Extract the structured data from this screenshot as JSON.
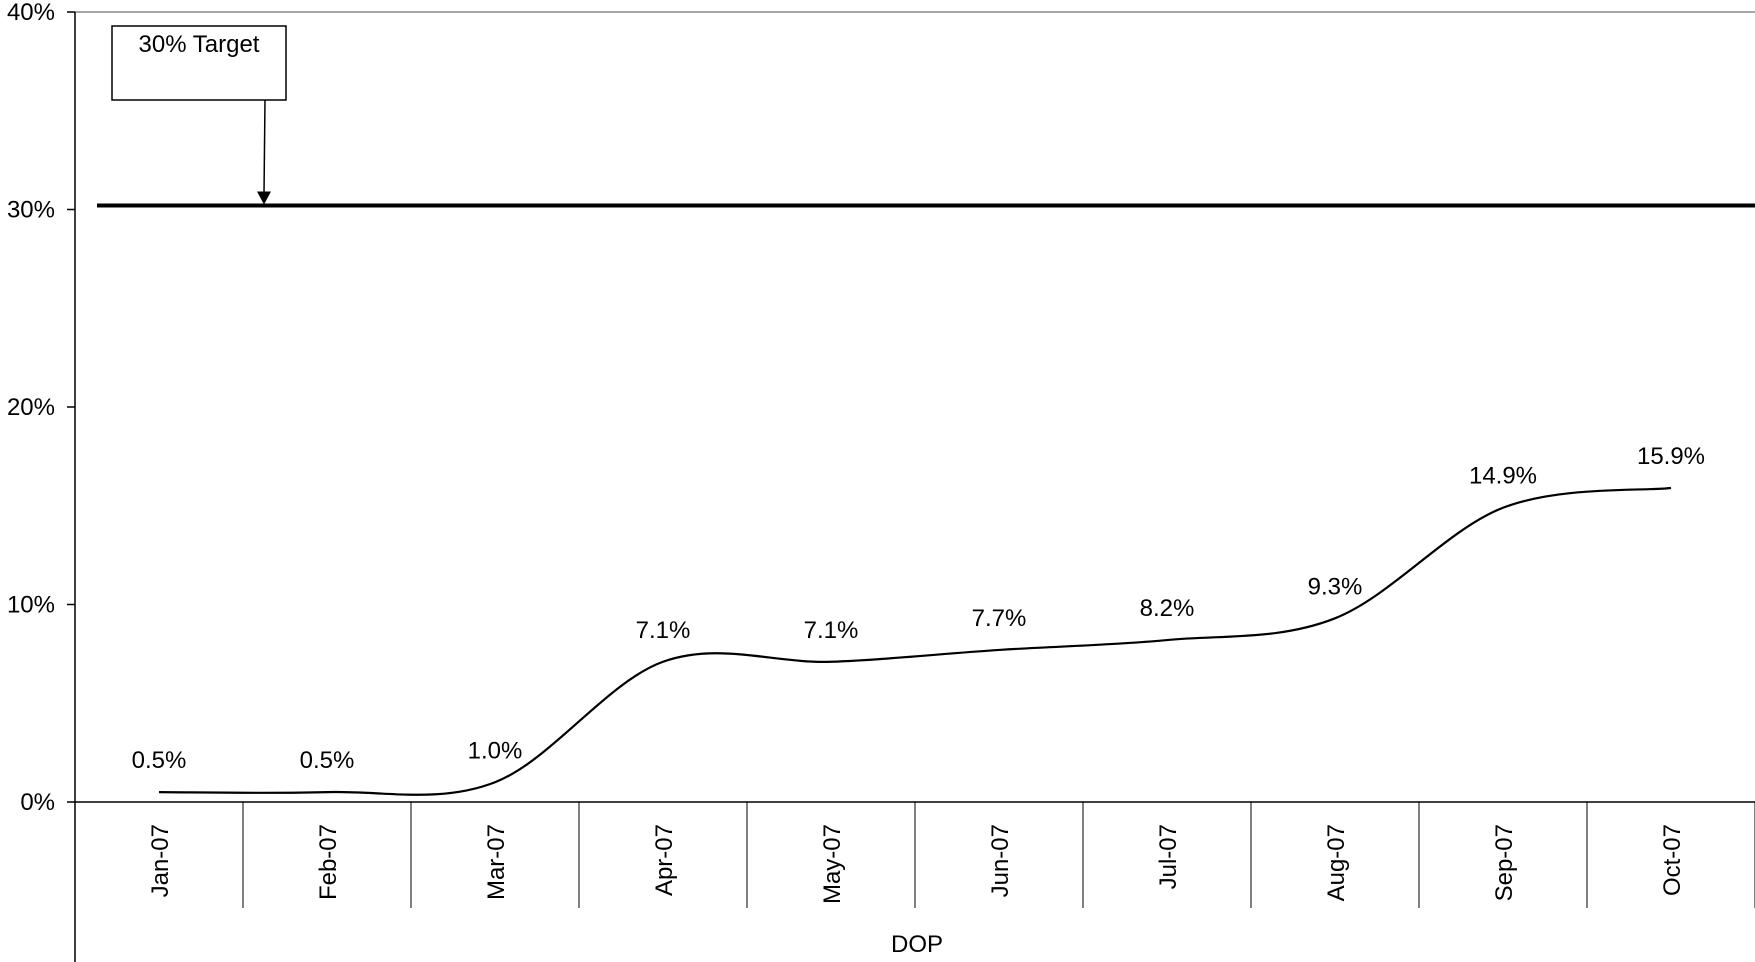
{
  "chart_data": {
    "type": "line",
    "title": "",
    "xlabel": "DOP",
    "ylabel": "",
    "categories": [
      "Jan-07",
      "Feb-07",
      "Mar-07",
      "Apr-07",
      "May-07",
      "Jun-07",
      "Jul-07",
      "Aug-07",
      "Sep-07",
      "Oct-07"
    ],
    "series": [
      {
        "values": [
          0.5,
          0.5,
          1.0,
          7.1,
          7.1,
          7.7,
          8.2,
          9.3,
          14.9,
          15.9
        ],
        "labels": [
          "0.5%",
          "0.5%",
          "1.0%",
          "7.1%",
          "7.1%",
          "7.7%",
          "8.2%",
          "9.3%",
          "14.9%",
          "15.9%"
        ],
        "color": "#000000",
        "smooth": true
      }
    ],
    "ylim": [
      0,
      40
    ],
    "yticks": [
      0,
      10,
      20,
      30,
      40
    ],
    "ytick_labels": [
      "0%",
      "10%",
      "20%",
      "30%",
      "40%"
    ],
    "target": {
      "value": 30.2,
      "label": "30% Target",
      "color": "#000000"
    },
    "grid": false,
    "legend": "none"
  }
}
